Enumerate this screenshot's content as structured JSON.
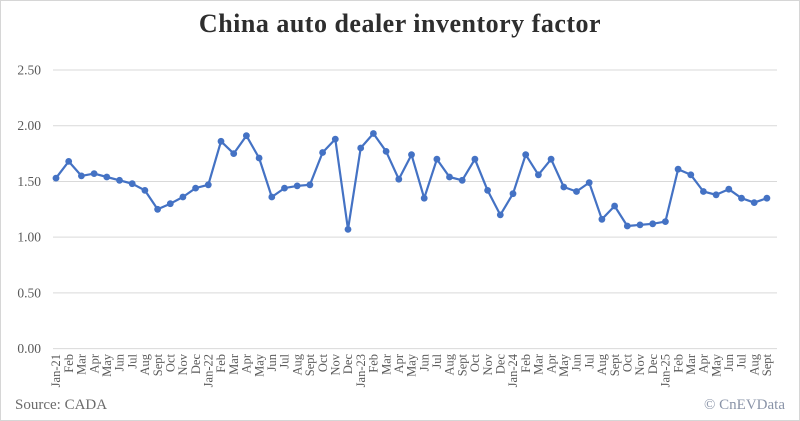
{
  "chart_data": {
    "type": "line",
    "title": "China auto dealer inventory factor",
    "categories": [
      "Jan-21",
      "Feb",
      "Mar",
      "Apr",
      "May",
      "Jun",
      "Jul",
      "Aug",
      "Sept",
      "Oct",
      "Nov",
      "Dec",
      "Jan-22",
      "Feb",
      "Mar",
      "Apr",
      "May",
      "Jun",
      "Jul",
      "Aug",
      "Sept",
      "Oct",
      "Nov",
      "Dec",
      "Jan-23",
      "Feb",
      "Mar",
      "Apr",
      "May",
      "Jun",
      "Jul",
      "Aug",
      "Sept",
      "Oct",
      "Nov",
      "Dec",
      "Jan-24",
      "Feb",
      "Mar",
      "Apr",
      "May",
      "Jun",
      "Jul",
      "Aug",
      "Sept",
      "Oct",
      "Nov",
      "Dec",
      "Jan-25",
      "Feb",
      "Mar",
      "Apr",
      "May",
      "Jun",
      "Jul",
      "Aug",
      "Sept"
    ],
    "values": [
      1.53,
      1.68,
      1.55,
      1.57,
      1.54,
      1.51,
      1.48,
      1.42,
      1.25,
      1.3,
      1.36,
      1.44,
      1.47,
      1.86,
      1.75,
      1.91,
      1.71,
      1.36,
      1.44,
      1.46,
      1.47,
      1.76,
      1.88,
      1.07,
      1.8,
      1.93,
      1.77,
      1.52,
      1.74,
      1.35,
      1.7,
      1.54,
      1.51,
      1.7,
      1.42,
      1.2,
      1.39,
      1.74,
      1.56,
      1.7,
      1.45,
      1.41,
      1.49,
      1.16,
      1.28,
      1.1,
      1.11,
      1.12,
      1.14,
      1.61,
      1.56,
      1.41,
      1.38,
      1.43,
      1.35,
      1.31,
      1.35
    ],
    "ylabel": "",
    "xlabel": "",
    "ylim": [
      0,
      2.5
    ],
    "y_ticks": [
      "0.00",
      "0.50",
      "1.00",
      "1.50",
      "2.00",
      "2.50"
    ],
    "grid": true,
    "legend": "none",
    "marker": "circle",
    "series_color": "#4472C4",
    "gridline_color": "#D9D9D9",
    "tick_label_color": "#595959"
  },
  "footer": {
    "source": "Source: CADA",
    "credit": "© CnEVData"
  }
}
